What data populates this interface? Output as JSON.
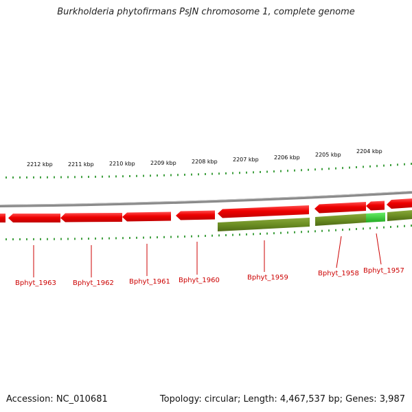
{
  "title": "Burkholderia phytofirmans PsJN chromosome 1, complete genome",
  "footer": {
    "accession": "Accession: NC_010681",
    "summary": "Topology: circular; Length: 4,467,537 bp; Genes: 3,987"
  },
  "kbp_labels": [
    {
      "kbp": 2212,
      "text": "2212 kbp"
    },
    {
      "kbp": 2211,
      "text": "2211 kbp"
    },
    {
      "kbp": 2210,
      "text": "2210 kbp"
    },
    {
      "kbp": 2209,
      "text": "2209 kbp"
    },
    {
      "kbp": 2208,
      "text": "2208 kbp"
    },
    {
      "kbp": 2207,
      "text": "2207 kbp"
    },
    {
      "kbp": 2206,
      "text": "2206 kbp"
    },
    {
      "kbp": 2205,
      "text": "2205 kbp"
    },
    {
      "kbp": 2204,
      "text": "2204 kbp"
    }
  ],
  "genes": [
    {
      "label": "Bphyt_1963"
    },
    {
      "label": "Bphyt_1962"
    },
    {
      "label": "Bphyt_1961"
    },
    {
      "label": "Bphyt_1960"
    },
    {
      "label": "Bphyt_1959"
    },
    {
      "label": "Bphyt_1958"
    },
    {
      "label": "Bphyt_1957"
    }
  ],
  "colors": {
    "cds": "#ee0000",
    "gene_bar": "#6b8e23",
    "highlight": "#33cc33",
    "ticks": "#008000",
    "label": "#cc0000",
    "backbone": "#888888"
  }
}
